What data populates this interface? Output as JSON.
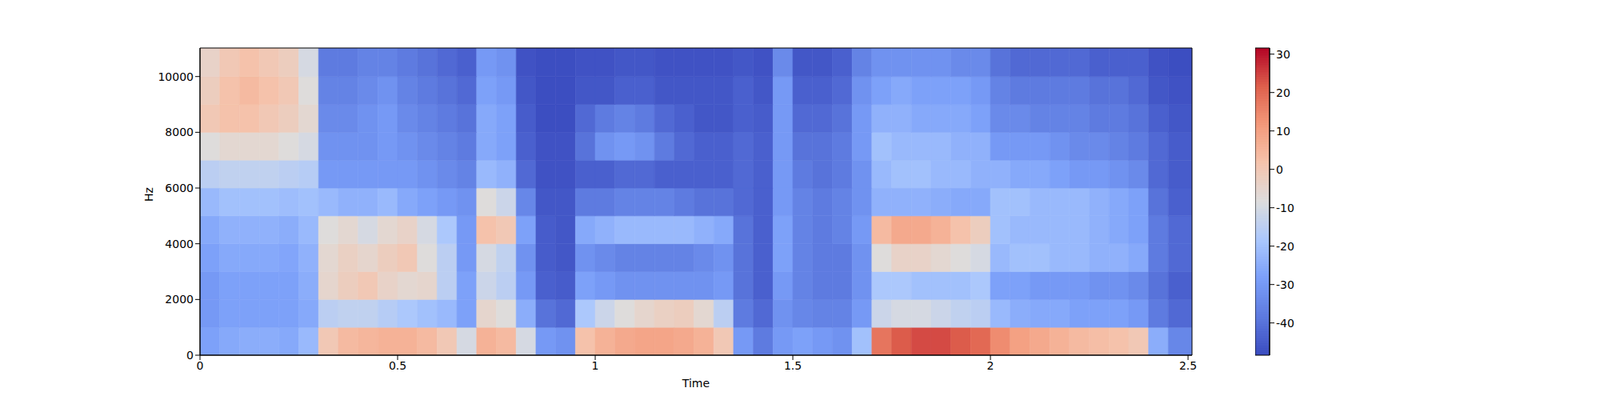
{
  "chart_data": {
    "type": "heatmap",
    "xlabel": "Time",
    "ylabel": "Hz",
    "x_edges": [
      0,
      0.05,
      0.1,
      0.15,
      0.2,
      0.25,
      0.3,
      0.35,
      0.4,
      0.45,
      0.5,
      0.55,
      0.6,
      0.65,
      0.7,
      0.75,
      0.8,
      0.85,
      0.9,
      0.95,
      1,
      1.05,
      1.1,
      1.15,
      1.2,
      1.25,
      1.3,
      1.35,
      1.4,
      1.45,
      1.5,
      1.55,
      1.6,
      1.65,
      1.7,
      1.75,
      1.8,
      1.85,
      1.9,
      1.95,
      2,
      2.05,
      2.1,
      2.15,
      2.2,
      2.25,
      2.3,
      2.35,
      2.4,
      2.45,
      2.51
    ],
    "y_edges": [
      0,
      1000,
      2000,
      3000,
      4000,
      5000,
      6000,
      7000,
      8000,
      9000,
      10000,
      11025
    ],
    "cells": [
      [
        -28,
        -26,
        -25,
        -25,
        -26,
        -22,
        0,
        4,
        5,
        6,
        6,
        4,
        0,
        -10,
        6,
        4,
        -10,
        -30,
        -32,
        2,
        6,
        8,
        9,
        9,
        8,
        6,
        0,
        -30,
        -38,
        -30,
        -28,
        -30,
        -32,
        -20,
        18,
        22,
        24,
        24,
        22,
        20,
        14,
        10,
        8,
        6,
        4,
        3,
        2,
        0,
        -25,
        -35
      ],
      [
        -30,
        -28,
        -28,
        -28,
        -28,
        -26,
        -15,
        -14,
        -14,
        -16,
        -18,
        -20,
        -22,
        -28,
        -5,
        -8,
        -25,
        -40,
        -42,
        -18,
        -12,
        -8,
        -5,
        -3,
        -2,
        -6,
        -15,
        -38,
        -42,
        -32,
        -35,
        -36,
        -36,
        -30,
        -12,
        -10,
        -10,
        -12,
        -14,
        -15,
        -22,
        -25,
        -26,
        -26,
        -28,
        -28,
        -28,
        -30,
        -38,
        -42
      ],
      [
        -30,
        -28,
        -28,
        -28,
        -28,
        -25,
        -5,
        -2,
        0,
        -4,
        -6,
        -5,
        -15,
        -28,
        -12,
        -15,
        -30,
        -44,
        -45,
        -28,
        -30,
        -32,
        -32,
        -32,
        -32,
        -32,
        -30,
        -40,
        -44,
        -30,
        -36,
        -38,
        -38,
        -32,
        -18,
        -18,
        -20,
        -20,
        -20,
        -18,
        -28,
        -28,
        -30,
        -30,
        -30,
        -32,
        -32,
        -34,
        -40,
        -44
      ],
      [
        -28,
        -26,
        -26,
        -26,
        -27,
        -24,
        -6,
        -3,
        -5,
        -2,
        0,
        -8,
        -15,
        -30,
        -10,
        -14,
        -32,
        -45,
        -46,
        -32,
        -34,
        -36,
        -36,
        -36,
        -36,
        -34,
        -32,
        -40,
        -44,
        -28,
        -36,
        -38,
        -38,
        -32,
        -8,
        -4,
        -4,
        -6,
        -8,
        -10,
        -22,
        -20,
        -20,
        -22,
        -22,
        -24,
        -24,
        -26,
        -38,
        -42
      ],
      [
        -26,
        -24,
        -24,
        -24,
        -25,
        -22,
        -8,
        -6,
        -10,
        -6,
        -4,
        -10,
        -18,
        -30,
        2,
        0,
        -28,
        -45,
        -46,
        -26,
        -24,
        -22,
        -22,
        -22,
        -22,
        -24,
        -26,
        -40,
        -44,
        -28,
        -36,
        -38,
        -36,
        -30,
        4,
        8,
        8,
        6,
        2,
        -2,
        -20,
        -22,
        -22,
        -22,
        -22,
        -24,
        -26,
        -28,
        -38,
        -42
      ],
      [
        -22,
        -20,
        -20,
        -20,
        -21,
        -20,
        -22,
        -24,
        -24,
        -22,
        -26,
        -28,
        -30,
        -32,
        -8,
        -12,
        -35,
        -46,
        -46,
        -38,
        -38,
        -36,
        -36,
        -36,
        -38,
        -40,
        -40,
        -42,
        -44,
        -30,
        -36,
        -38,
        -36,
        -32,
        -24,
        -24,
        -24,
        -25,
        -26,
        -26,
        -20,
        -20,
        -22,
        -22,
        -22,
        -24,
        -26,
        -28,
        -40,
        -44
      ],
      [
        -15,
        -14,
        -14,
        -14,
        -15,
        -16,
        -30,
        -30,
        -30,
        -30,
        -30,
        -32,
        -34,
        -36,
        -22,
        -24,
        -42,
        -47,
        -47,
        -44,
        -44,
        -42,
        -42,
        -44,
        -44,
        -44,
        -44,
        -42,
        -44,
        -30,
        -38,
        -40,
        -38,
        -32,
        -22,
        -20,
        -20,
        -22,
        -22,
        -24,
        -24,
        -26,
        -26,
        -28,
        -30,
        -30,
        -32,
        -34,
        -42,
        -45
      ],
      [
        -8,
        -6,
        -6,
        -6,
        -8,
        -10,
        -32,
        -32,
        -32,
        -30,
        -32,
        -34,
        -36,
        -38,
        -26,
        -28,
        -44,
        -47,
        -47,
        -40,
        -32,
        -30,
        -32,
        -38,
        -42,
        -44,
        -44,
        -42,
        -44,
        -30,
        -40,
        -40,
        -38,
        -30,
        -20,
        -22,
        -22,
        -22,
        -24,
        -24,
        -30,
        -30,
        -30,
        -32,
        -34,
        -34,
        -36,
        -38,
        -42,
        -45
      ],
      [
        0,
        2,
        2,
        0,
        -2,
        -6,
        -34,
        -34,
        -32,
        -30,
        -34,
        -36,
        -38,
        -40,
        -26,
        -28,
        -45,
        -48,
        -48,
        -42,
        -38,
        -36,
        -38,
        -42,
        -44,
        -46,
        -46,
        -44,
        -45,
        -30,
        -42,
        -42,
        -40,
        -30,
        -24,
        -24,
        -26,
        -26,
        -26,
        -28,
        -34,
        -34,
        -36,
        -36,
        -36,
        -38,
        -38,
        -40,
        -44,
        -46
      ],
      [
        -2,
        2,
        4,
        2,
        0,
        -8,
        -36,
        -36,
        -34,
        -32,
        -36,
        -38,
        -40,
        -42,
        -28,
        -30,
        -46,
        -48,
        -48,
        -46,
        -46,
        -44,
        -44,
        -46,
        -46,
        -46,
        -46,
        -44,
        -46,
        -30,
        -44,
        -44,
        -42,
        -32,
        -28,
        -26,
        -28,
        -28,
        -28,
        -30,
        -36,
        -38,
        -38,
        -38,
        -38,
        -40,
        -40,
        -42,
        -46,
        -47
      ],
      [
        -4,
        0,
        2,
        0,
        -2,
        -10,
        -38,
        -38,
        -36,
        -36,
        -38,
        -40,
        -42,
        -44,
        -30,
        -32,
        -47,
        -48,
        -48,
        -47,
        -47,
        -46,
        -46,
        -47,
        -47,
        -47,
        -47,
        -46,
        -47,
        -34,
        -46,
        -46,
        -44,
        -36,
        -32,
        -32,
        -32,
        -32,
        -34,
        -34,
        -40,
        -42,
        -42,
        -42,
        -42,
        -44,
        -44,
        -44,
        -47,
        -48
      ]
    ],
    "xlim": [
      0,
      2.51
    ],
    "ylim": [
      0,
      11025
    ],
    "xticks": [
      0,
      0.5,
      1,
      1.5,
      2,
      2.5
    ],
    "yticks": [
      0,
      2000,
      4000,
      6000,
      8000,
      10000
    ],
    "color": "coolwarm",
    "colorbar": {
      "range": [
        -48.4,
        31.6
      ],
      "ticks": [
        -40,
        -30,
        -20,
        -10,
        0,
        10,
        20,
        30
      ]
    }
  }
}
